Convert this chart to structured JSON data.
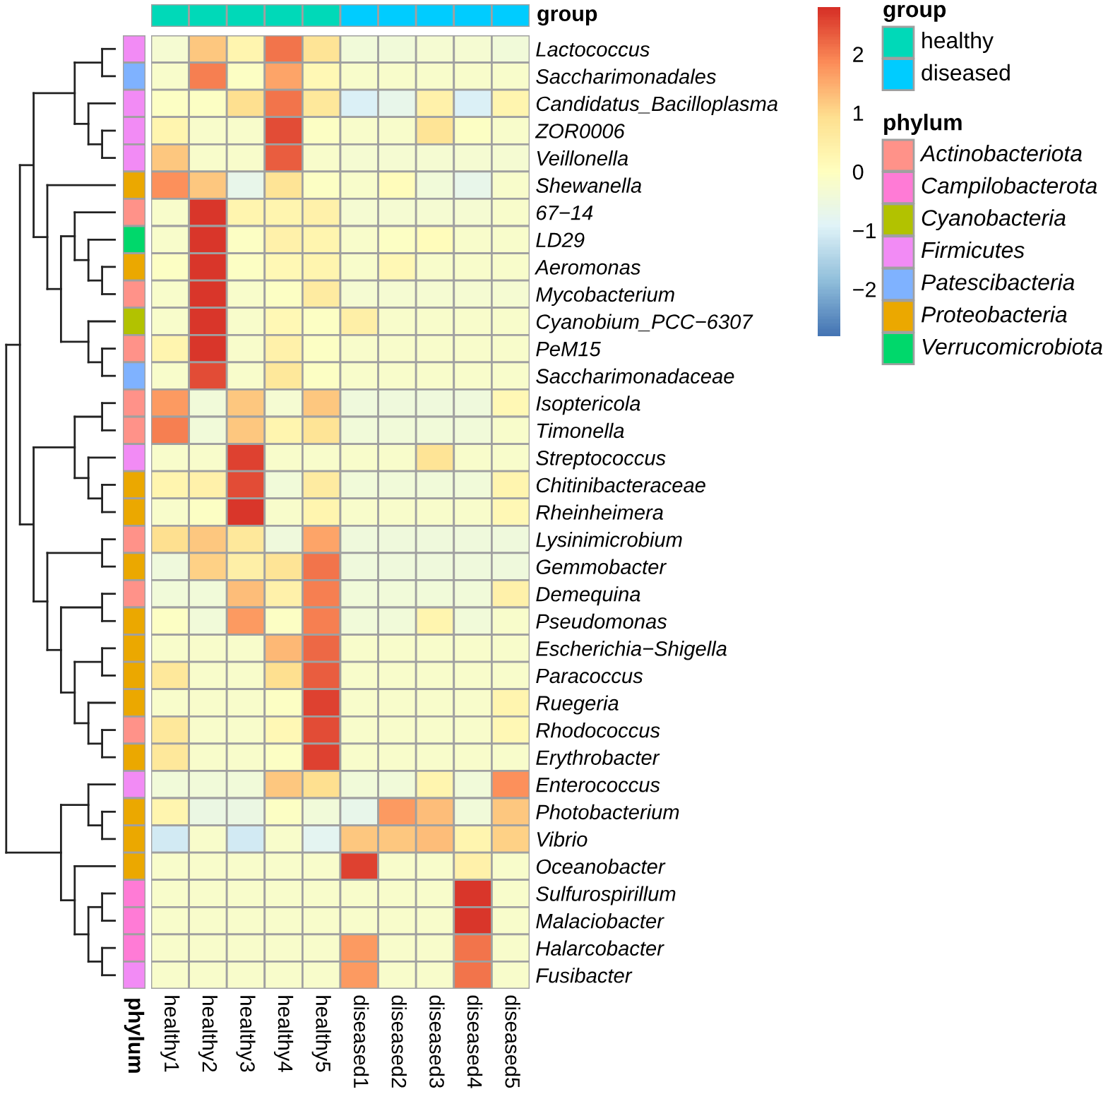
{
  "chart_data": [
    {
      "type": "heatmap",
      "categories": [
        "healthy1",
        "healthy2",
        "healthy3",
        "healthy4",
        "healthy5",
        "diseased1",
        "diseased2",
        "diseased3",
        "diseased4",
        "diseased5"
      ],
      "y_categories": [
        "Lactococcus",
        "Saccharimonadales",
        "Candidatus_Bacilloplasma",
        "ZOR0006",
        "Veillonella",
        "Shewanella",
        "67−14",
        "LD29",
        "Aeromonas",
        "Mycobacterium",
        "Cyanobium_PCC−6307",
        "PeM15",
        "Saccharimonadaceae",
        "Isoptericola",
        "Timonella",
        "Streptococcus",
        "Chitinibacteraceae",
        "Rheinheimera",
        "Lysinimicrobium",
        "Gemmobacter",
        "Demequina",
        "Pseudomonas",
        "Escherichia−Shigella",
        "Paracoccus",
        "Ruegeria",
        "Rhodococcus",
        "Erythrobacter",
        "Enterococcus",
        "Photobacterium",
        "Vibrio",
        "Oceanobacter",
        "Sulfurospirillum",
        "Malaciobacter",
        "Halarcobacter",
        "Fusibacter"
      ],
      "cells": [
        [
          -0.3,
          1.2,
          0.3,
          2.1,
          0.8,
          -0.4,
          -0.4,
          -0.3,
          -0.3,
          -0.4
        ],
        [
          -0.2,
          2.0,
          -0.1,
          1.6,
          0.2,
          -0.2,
          -0.2,
          -0.2,
          -0.2,
          -0.2
        ],
        [
          -0.1,
          -0.1,
          0.9,
          2.1,
          0.7,
          -1.0,
          -0.7,
          0.4,
          -1.0,
          0.3
        ],
        [
          0.3,
          -0.2,
          -0.2,
          2.5,
          -0.1,
          -0.2,
          -0.2,
          0.8,
          -0.1,
          -0.2
        ],
        [
          1.2,
          -0.2,
          -0.2,
          2.3,
          -0.2,
          -0.3,
          -0.3,
          -0.3,
          -0.3,
          -0.3
        ],
        [
          1.8,
          1.2,
          -0.7,
          0.8,
          -0.1,
          -0.2,
          0.1,
          -0.4,
          -0.7,
          -0.2
        ],
        [
          -0.2,
          2.7,
          0.3,
          0.3,
          0.4,
          -0.3,
          -0.3,
          -0.3,
          -0.3,
          -0.2
        ],
        [
          -0.2,
          2.7,
          -0.1,
          0.4,
          0.3,
          -0.2,
          -0.1,
          0.1,
          -0.2,
          -0.2
        ],
        [
          -0.1,
          2.7,
          -0.1,
          0.2,
          0.3,
          -0.2,
          0.2,
          -0.2,
          -0.2,
          -0.2
        ],
        [
          -0.2,
          2.7,
          -0.2,
          -0.1,
          0.6,
          -0.3,
          -0.3,
          -0.3,
          -0.3,
          -0.3
        ],
        [
          -0.2,
          2.7,
          -0.2,
          0.2,
          -0.1,
          0.5,
          -0.2,
          -0.2,
          -0.2,
          -0.2
        ],
        [
          0.3,
          2.7,
          -0.2,
          0.4,
          -0.1,
          -0.2,
          -0.2,
          -0.2,
          -0.2,
          -0.2
        ],
        [
          -0.2,
          2.5,
          -0.2,
          0.7,
          -0.1,
          -0.2,
          -0.2,
          -0.2,
          -0.2,
          -0.2
        ],
        [
          1.7,
          -0.4,
          1.2,
          -0.3,
          1.2,
          -0.5,
          -0.5,
          -0.5,
          -0.5,
          0.2
        ],
        [
          2.0,
          -0.4,
          1.2,
          0.3,
          0.8,
          -0.4,
          -0.4,
          -0.4,
          -0.4,
          -0.2
        ],
        [
          -0.2,
          -0.2,
          2.6,
          -0.2,
          -0.2,
          -0.2,
          -0.2,
          0.8,
          -0.2,
          -0.2
        ],
        [
          0.3,
          0.4,
          2.5,
          -0.4,
          0.6,
          -0.4,
          -0.4,
          -0.4,
          -0.4,
          0.3
        ],
        [
          -0.2,
          -0.1,
          2.7,
          -0.2,
          0.3,
          -0.2,
          -0.2,
          -0.2,
          -0.2,
          0.2
        ],
        [
          0.9,
          1.2,
          0.7,
          -0.5,
          1.6,
          -0.5,
          -0.5,
          -0.5,
          -0.5,
          -0.5
        ],
        [
          -0.5,
          1.1,
          0.5,
          0.8,
          2.1,
          -0.5,
          -0.5,
          -0.5,
          -0.5,
          -0.5
        ],
        [
          -0.4,
          -0.4,
          1.3,
          0.4,
          2.0,
          -0.4,
          -0.4,
          -0.4,
          -0.4,
          0.4
        ],
        [
          -0.1,
          -0.4,
          1.7,
          -0.1,
          2.0,
          -0.4,
          -0.4,
          0.3,
          -0.4,
          -0.2
        ],
        [
          -0.2,
          -0.2,
          -0.2,
          1.4,
          2.2,
          -0.2,
          -0.2,
          -0.2,
          -0.2,
          -0.2
        ],
        [
          0.7,
          -0.2,
          -0.2,
          0.9,
          2.3,
          -0.2,
          -0.2,
          -0.2,
          -0.2,
          -0.2
        ],
        [
          -0.2,
          -0.2,
          -0.2,
          -0.1,
          2.6,
          -0.2,
          -0.2,
          -0.2,
          -0.2,
          0.3
        ],
        [
          0.7,
          -0.2,
          -0.2,
          0.2,
          2.5,
          -0.2,
          -0.2,
          -0.2,
          -0.2,
          0.2
        ],
        [
          0.7,
          -0.2,
          -0.2,
          -0.1,
          2.6,
          -0.2,
          -0.2,
          -0.2,
          -0.2,
          -0.2
        ],
        [
          -0.4,
          -0.4,
          -0.4,
          1.2,
          0.9,
          -0.4,
          -0.4,
          0.3,
          -0.4,
          1.8
        ],
        [
          0.3,
          -0.6,
          -0.6,
          -0.1,
          -0.4,
          -0.7,
          1.7,
          1.3,
          -0.4,
          1.2
        ],
        [
          -1.1,
          -0.2,
          -1.1,
          -0.2,
          -0.8,
          1.2,
          1.2,
          1.3,
          0.3,
          1.1
        ],
        [
          -0.2,
          -0.2,
          -0.2,
          -0.2,
          -0.2,
          2.6,
          -0.2,
          -0.2,
          0.4,
          -0.2
        ],
        [
          -0.2,
          -0.2,
          -0.2,
          -0.2,
          -0.2,
          -0.2,
          -0.2,
          -0.2,
          2.7,
          -0.2
        ],
        [
          -0.2,
          -0.2,
          -0.2,
          -0.2,
          -0.2,
          -0.2,
          -0.2,
          -0.2,
          2.7,
          -0.2
        ],
        [
          -0.2,
          -0.2,
          -0.2,
          -0.2,
          -0.2,
          1.7,
          -0.2,
          -0.2,
          2.1,
          -0.2
        ],
        [
          -0.2,
          -0.2,
          -0.2,
          -0.2,
          -0.2,
          1.7,
          -0.2,
          -0.2,
          2.1,
          -0.2
        ]
      ],
      "clim": [
        -2.8,
        2.8
      ],
      "cticks": [
        {
          "value": -2,
          "label": "−2"
        },
        {
          "value": -1,
          "label": "−1"
        },
        0,
        1,
        2
      ]
    },
    {
      "type": "other",
      "title": "group",
      "legend_title": "group",
      "colors": [
        "#00d9b8",
        "#00d9b8",
        "#00d9b8",
        "#00d9b8",
        "#00d9b8",
        "#00ccff",
        "#00ccff",
        "#00ccff",
        "#00ccff",
        "#00ccff"
      ],
      "series": [
        {
          "name": "healthy",
          "color": "#00d9b8"
        },
        {
          "name": "diseased",
          "color": "#00ccff"
        }
      ]
    },
    {
      "type": "other",
      "xlabel": "phylum",
      "legend_title": "phylum",
      "colors": [
        "#f28bf5",
        "#7fb2ff",
        "#f28bf5",
        "#f28bf5",
        "#f28bf5",
        "#eba800",
        "#ff9289",
        "#00d86b",
        "#eba800",
        "#ff9289",
        "#b2c200",
        "#ff9289",
        "#7fb2ff",
        "#ff9289",
        "#ff9289",
        "#f28bf5",
        "#eba800",
        "#eba800",
        "#ff9289",
        "#eba800",
        "#ff9289",
        "#eba800",
        "#eba800",
        "#eba800",
        "#eba800",
        "#ff9289",
        "#eba800",
        "#f28bf5",
        "#eba800",
        "#eba800",
        "#eba800",
        "#ff7bd6",
        "#ff7bd6",
        "#ff7bd6",
        "#f28bf5"
      ],
      "series": [
        {
          "name": "Actinobacteriota",
          "color": "#ff9289"
        },
        {
          "name": "Campilobacterota",
          "color": "#ff7bd6"
        },
        {
          "name": "Cyanobacteria",
          "color": "#b2c200"
        },
        {
          "name": "Firmicutes",
          "color": "#f28bf5"
        },
        {
          "name": "Patescibacteria",
          "color": "#7fb2ff"
        },
        {
          "name": "Proteobacteria",
          "color": "#eba800"
        },
        {
          "name": "Verrucomicrobiota",
          "color": "#00d86b"
        }
      ]
    }
  ]
}
